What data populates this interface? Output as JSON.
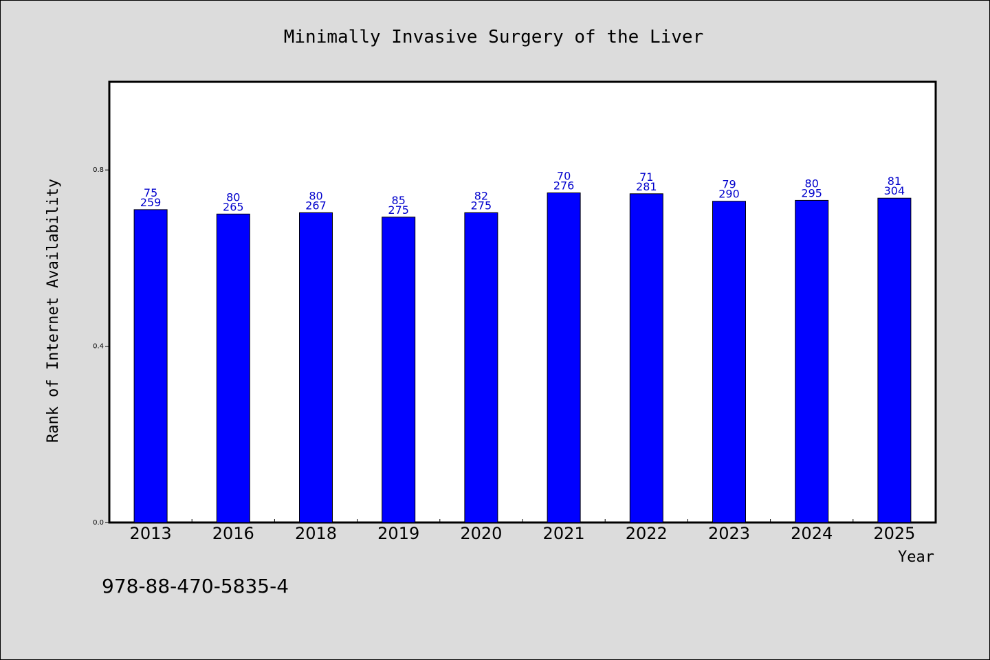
{
  "chart_data": {
    "type": "bar",
    "title": "Minimally Invasive Surgery of the Liver",
    "xlabel": "Year",
    "ylabel": "Rank of Internet Availability",
    "categories": [
      "2013",
      "2016",
      "2018",
      "2019",
      "2020",
      "2021",
      "2022",
      "2023",
      "2024",
      "2025"
    ],
    "values": [
      0.71,
      0.7,
      0.703,
      0.693,
      0.703,
      0.748,
      0.746,
      0.729,
      0.731,
      0.736
    ],
    "label_top": [
      "75",
      "80",
      "80",
      "85",
      "82",
      "70",
      "71",
      "79",
      "80",
      "81"
    ],
    "label_bottom": [
      "259",
      "265",
      "267",
      "275",
      "275",
      "276",
      "281",
      "290",
      "295",
      "304"
    ],
    "ylim": [
      0,
      1.0
    ],
    "yticks": [
      0.0,
      0.4,
      0.8
    ],
    "ytick_labels": [
      "0.0",
      "0.4",
      "0.8"
    ],
    "bar_color": "#0000ff",
    "label_color": "#0000cc",
    "background": "#dcdcdc",
    "plot_background": "#ffffff",
    "grid": false,
    "legend": "none"
  },
  "footer_text": "978-88-470-5835-4"
}
